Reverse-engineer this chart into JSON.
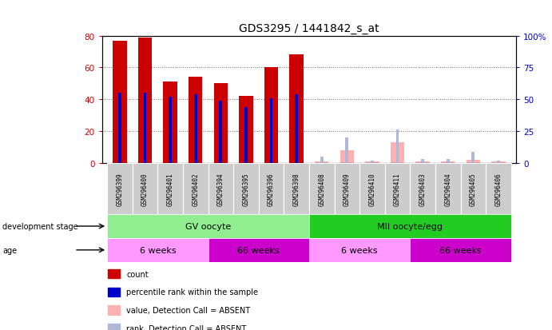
{
  "title": "GDS3295 / 1441842_s_at",
  "samples": [
    "GSM296399",
    "GSM296400",
    "GSM296401",
    "GSM296402",
    "GSM296394",
    "GSM296395",
    "GSM296396",
    "GSM296398",
    "GSM296408",
    "GSM296409",
    "GSM296410",
    "GSM296411",
    "GSM296403",
    "GSM296404",
    "GSM296405",
    "GSM296406"
  ],
  "count_values": [
    77,
    79,
    51,
    54,
    50,
    42,
    60,
    68,
    1,
    8,
    1,
    13,
    1,
    1,
    2,
    1
  ],
  "rank_values": [
    55,
    55,
    52,
    54,
    49,
    44,
    51,
    54,
    null,
    null,
    null,
    null,
    null,
    null,
    null,
    null
  ],
  "absent_value": [
    null,
    null,
    null,
    null,
    null,
    null,
    null,
    null,
    1,
    8,
    1,
    13,
    1,
    1,
    2,
    1
  ],
  "absent_rank": [
    null,
    null,
    null,
    null,
    null,
    null,
    null,
    null,
    5,
    20,
    2,
    26,
    3,
    3,
    9,
    2
  ],
  "detection_call": [
    "P",
    "P",
    "P",
    "P",
    "P",
    "P",
    "P",
    "P",
    "A",
    "A",
    "A",
    "A",
    "A",
    "A",
    "A",
    "A"
  ],
  "ylim_left": [
    0,
    80
  ],
  "ylim_right": [
    0,
    100
  ],
  "yticks_left": [
    0,
    20,
    40,
    60,
    80
  ],
  "yticks_right": [
    0,
    25,
    50,
    75,
    100
  ],
  "count_color": "#CC0000",
  "rank_color": "#0000CC",
  "absent_value_color": "#FFB0B0",
  "absent_rank_color": "#B0B8D8",
  "group_gv_color": "#90EE90",
  "group_mii_color": "#22CC22",
  "age_light_color": "#FF99FF",
  "age_dark_color": "#CC00CC",
  "groups": [
    {
      "label": "GV oocyte",
      "start": 0,
      "end": 7
    },
    {
      "label": "MII oocyte/egg",
      "start": 8,
      "end": 15
    }
  ],
  "ages": [
    {
      "label": "6 weeks",
      "start": 0,
      "end": 3,
      "dark": false
    },
    {
      "label": "66 weeks",
      "start": 4,
      "end": 7,
      "dark": true
    },
    {
      "label": "6 weeks",
      "start": 8,
      "end": 11,
      "dark": false
    },
    {
      "label": "66 weeks",
      "start": 12,
      "end": 15,
      "dark": true
    }
  ],
  "left_label": "development stage",
  "age_label": "age",
  "grid_color": "#666666",
  "tick_color_left": "#CC0000",
  "tick_color_right": "#0000CC",
  "legend_items": [
    {
      "color": "#CC0000",
      "label": "count"
    },
    {
      "color": "#0000CC",
      "label": "percentile rank within the sample"
    },
    {
      "color": "#FFB0B0",
      "label": "value, Detection Call = ABSENT"
    },
    {
      "color": "#B0B8D8",
      "label": "rank, Detection Call = ABSENT"
    }
  ]
}
